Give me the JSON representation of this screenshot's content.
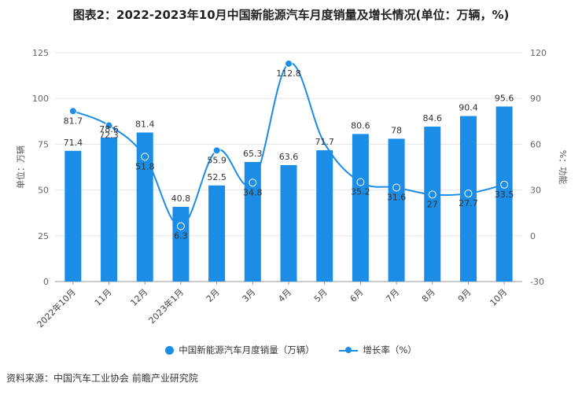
{
  "title": "图表2：2022-2023年10月中国新能源汽车月度销量及增长情况(单位：万辆，%)",
  "source": "资料来源：中国汽车工业协会 前瞻产业研究院",
  "colors": {
    "bar": "#1b8de6",
    "line": "#1b8de6",
    "grid": "#e6e6e6",
    "axis": "#999999"
  },
  "chart_data": {
    "type": "bar",
    "categories": [
      "2022年10月",
      "11月",
      "12月",
      "2023年1月",
      "2月",
      "3月",
      "4月",
      "5月",
      "6月",
      "7月",
      "8月",
      "9月",
      "10月"
    ],
    "series": [
      {
        "name": "中国新能源汽车月度销量（万辆）",
        "type": "bar",
        "axis": "left",
        "values": [
          71.4,
          78.6,
          81.4,
          40.8,
          52.5,
          65.3,
          63.6,
          71.7,
          80.6,
          78,
          84.6,
          90.4,
          95.6
        ]
      },
      {
        "name": "增长率（%）",
        "type": "line",
        "axis": "right",
        "values": [
          81.7,
          72.3,
          51.8,
          6.3,
          55.9,
          34.8,
          112.8,
          60.5,
          35.2,
          31.6,
          27,
          27.7,
          33.5
        ]
      }
    ],
    "data_labels_line": [
      "81.7",
      "72.3",
      "51.8",
      "6.3",
      "55.9",
      "34.8",
      "112.8",
      "",
      "35.2",
      "31.6",
      "27",
      "27.7",
      "33.5"
    ],
    "ylabel_left": "单位：万辆",
    "ylabel_right": "%：功能",
    "ylim_left": [
      0,
      125
    ],
    "yticks_left": [
      0,
      25,
      50,
      75,
      100,
      125
    ],
    "ylim_right": [
      -30,
      120
    ],
    "yticks_right": [
      -30,
      0,
      30,
      60,
      90,
      120
    ],
    "grid": true,
    "legend_position": "bottom"
  }
}
